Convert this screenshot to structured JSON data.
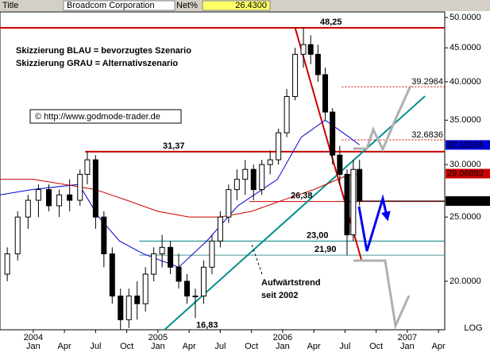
{
  "header": {
    "title": "Title",
    "name": "Broadcom Corporation",
    "field": "Net%"
  },
  "chart_data": {
    "type": "candlestick",
    "log_scale": true,
    "notes": [
      "Skizzierung BLAU = bevorzugtes Szenario",
      "Skizzierung GRAU = Alternativszenario"
    ],
    "source": "© http://www.godmode-trader.de",
    "trend_label": [
      "Aufwärtstrend",
      "seit 2002"
    ],
    "scale_label": "LOG",
    "xlim": [
      -3.2,
      39.6
    ],
    "ylim": [
      16.9,
      50.98
    ],
    "xticks": [
      {
        "value": 0,
        "label": "Jan"
      },
      {
        "value": 3,
        "label": "Apr"
      },
      {
        "value": 6,
        "label": "Jul"
      },
      {
        "value": 9,
        "label": "Oct"
      },
      {
        "value": 12,
        "label": "Jan"
      },
      {
        "value": 15,
        "label": "Apr"
      },
      {
        "value": 18,
        "label": "Jul"
      },
      {
        "value": 21,
        "label": "Oct"
      },
      {
        "value": 24,
        "label": "Jan"
      },
      {
        "value": 27,
        "label": "Apr"
      },
      {
        "value": 30,
        "label": "Jul"
      },
      {
        "value": 33,
        "label": "Oct"
      },
      {
        "value": 36,
        "label": "Jan"
      },
      {
        "value": 39,
        "label": "Apr"
      }
    ],
    "year_ticks": [
      {
        "value": 0,
        "label": "2004"
      },
      {
        "value": 12,
        "label": "2005"
      },
      {
        "value": 24,
        "label": "2006"
      },
      {
        "value": 36,
        "label": "2007"
      }
    ],
    "yticks": [
      {
        "value": 20,
        "label": "20.0000"
      },
      {
        "value": 25,
        "label": "25.0000"
      },
      {
        "value": 30,
        "label": "30.0000"
      },
      {
        "value": 35,
        "label": "35.0000"
      },
      {
        "value": 40,
        "label": "40.0000"
      },
      {
        "value": 45,
        "label": "45.0000"
      },
      {
        "value": 50,
        "label": "50.0000"
      }
    ],
    "candles": {
      "x": [
        -2.5,
        -1.5,
        -0.5,
        0.5,
        1.5,
        2.5,
        3.5,
        4.5,
        5.2,
        6,
        6.8,
        7.6,
        8.4,
        9.2,
        10,
        10.8,
        11.6,
        12.4,
        13.2,
        14,
        14.8,
        15.6,
        16.4,
        17.2,
        18,
        18.8,
        19.6,
        20.4,
        21.2,
        22,
        22.8,
        23.6,
        24.4,
        25.2,
        26,
        26.7,
        27.4,
        28.1,
        28.8,
        29.5,
        30.2,
        30.8,
        31.4
      ],
      "open": [
        20.5,
        22,
        25,
        26.5,
        27.5,
        26,
        27,
        26.5,
        29,
        30.5,
        25,
        22,
        19,
        17.5,
        19,
        18.5,
        20.5,
        22,
        22.5,
        21,
        20,
        19,
        19,
        21,
        23,
        25,
        27.5,
        28.5,
        29.5,
        27.5,
        30,
        30.5,
        33.5,
        38,
        44,
        45.5,
        44,
        41,
        36,
        31,
        29,
        23.5,
        29.5
      ],
      "high": [
        22.5,
        25.5,
        27,
        28,
        28,
        27.5,
        28.5,
        29.5,
        31.37,
        31,
        25.5,
        22.5,
        19.5,
        19.5,
        20,
        21,
        22.5,
        23.5,
        23,
        22,
        20.5,
        19.5,
        21.5,
        23.5,
        25.5,
        28,
        29.5,
        30.5,
        30,
        30.5,
        31.5,
        34,
        39,
        45,
        48.25,
        47,
        45.5,
        42,
        36.5,
        32,
        29.5,
        30.5,
        30.5
      ],
      "low": [
        20,
        21.5,
        24,
        25,
        25.5,
        25,
        25.5,
        26,
        28,
        24,
        21,
        18.5,
        16.83,
        17,
        17.5,
        18,
        20,
        21,
        20.5,
        19.5,
        18.5,
        17.6,
        18.5,
        20.5,
        22.5,
        24.5,
        26.5,
        27,
        26.5,
        27,
        29,
        30,
        33,
        37.5,
        42,
        42.5,
        40,
        35,
        30,
        28,
        21.9,
        23,
        26
      ],
      "close": [
        22,
        25,
        26.5,
        27.5,
        26,
        27,
        26.5,
        29,
        30.5,
        25,
        22,
        19,
        17.5,
        19,
        18.5,
        20.5,
        22,
        22.5,
        21,
        20,
        19,
        19,
        21,
        23,
        25,
        27.5,
        28.5,
        29.5,
        27.5,
        30,
        30.5,
        33.5,
        38,
        44,
        45.5,
        44,
        41,
        36,
        31,
        29,
        23.5,
        29.5,
        26.43
      ]
    },
    "series": [
      {
        "color": "#0000cc",
        "x": [
          -3.2,
          -0.15,
          4.4,
          6.3,
          8.3,
          10.6,
          14,
          16.7,
          19.7,
          23.5,
          25.8,
          28.1,
          30.4,
          31.4
        ],
        "values": [
          27,
          27.5,
          28,
          25,
          23,
          22,
          21,
          23,
          26,
          28.5,
          33,
          35,
          33,
          32.11524
        ]
      },
      {
        "color": "#cc0000",
        "x": [
          -3.2,
          0,
          3,
          6,
          9,
          12,
          15,
          18,
          21,
          24,
          27,
          30,
          31.4
        ],
        "values": [
          28.5,
          28.5,
          28,
          27.5,
          26.5,
          25.5,
          25,
          25,
          25.5,
          26.5,
          27.5,
          28.8,
          29.06892
        ]
      }
    ],
    "levels": [
      {
        "value": 48.25,
        "label": "48,25",
        "color": "#cc0000",
        "from": -3.2
      },
      {
        "value": 31.37,
        "label": "31,37",
        "color": "#cc0000",
        "from": 5.0
      },
      {
        "value": 26.38,
        "label": "26,38",
        "color": "#cc0000",
        "from": 20.8
      },
      {
        "value": 23.0,
        "label": "23,00",
        "color": "#008080",
        "from": 10.2
      },
      {
        "value": 21.9,
        "label": "21,90",
        "color": "#4a9a9a",
        "from": 10.2
      },
      {
        "value": 16.83,
        "label": "16,83",
        "color": "#4a9a9a",
        "from": 7.3
      }
    ],
    "targets": [
      {
        "value": 39.2964,
        "color": "#cc0000",
        "from": 29.7
      },
      {
        "value": 32.6836,
        "color": "#cc0000",
        "from": 29.7
      }
    ],
    "trendline": {
      "color": "#00908a",
      "x": [
        11.7,
        37.7
      ],
      "values": [
        16.4,
        38.05
      ]
    },
    "downtrend": {
      "color": "#cc0000",
      "x": [
        25.2,
        31.6
      ],
      "values": [
        48.25,
        21.5
      ]
    },
    "last_price": {
      "value": 26.43,
      "label": "26.4300"
    }
  }
}
